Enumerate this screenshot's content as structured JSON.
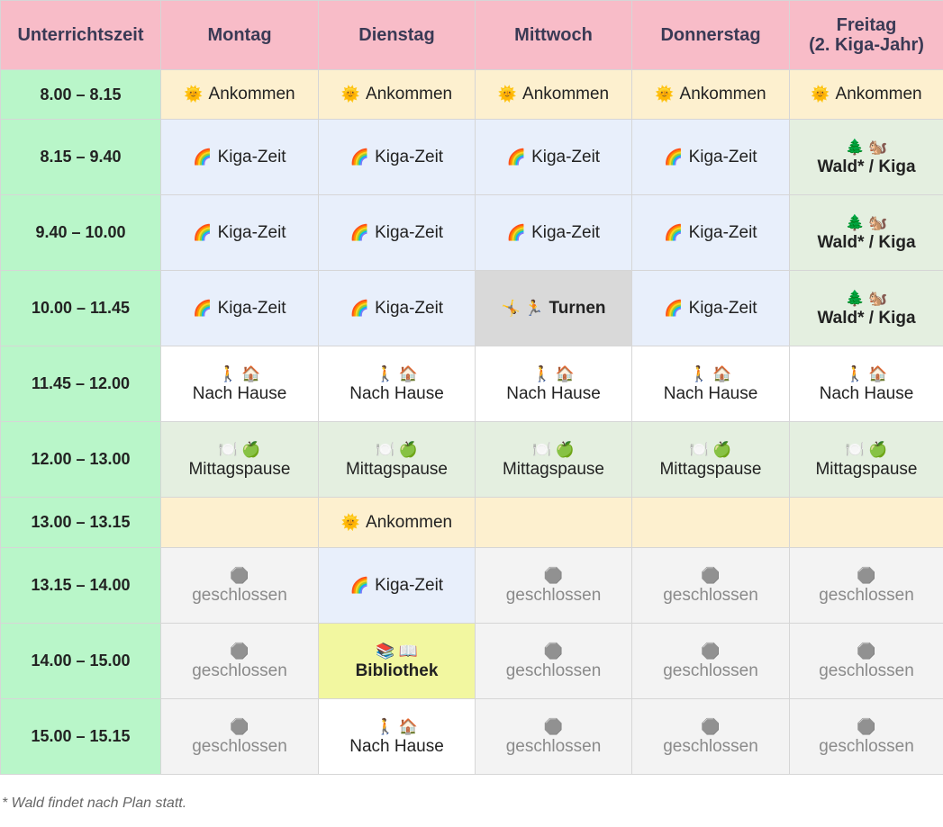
{
  "header": {
    "columns": [
      "Unterrichtszeit",
      "Montag",
      "Dienstag",
      "Mittwoch",
      "Donnerstag",
      "Freitag\n(2. Kiga-Jahr)"
    ],
    "color": "#f8bcc8"
  },
  "time_color": "#b9f6c9",
  "rows": [
    {
      "time": "8.00 – 8.15",
      "cells": [
        {
          "icon": "🌞",
          "text": "Ankommen",
          "color": "#fdf0cf"
        },
        {
          "icon": "🌞",
          "text": "Ankommen",
          "color": "#fdf0cf"
        },
        {
          "icon": "🌞",
          "text": "Ankommen",
          "color": "#fdf0cf"
        },
        {
          "icon": "🌞",
          "text": "Ankommen",
          "color": "#fdf0cf"
        },
        {
          "icon": "🌞",
          "text": "Ankommen",
          "color": "#fdf0cf"
        }
      ]
    },
    {
      "time": "8.15 – 9.40",
      "cells": [
        {
          "icon": "🌈",
          "text": "Kiga-Zeit",
          "color": "#e8effb"
        },
        {
          "icon": "🌈",
          "text": "Kiga-Zeit",
          "color": "#e8effb"
        },
        {
          "icon": "🌈",
          "text": "Kiga-Zeit",
          "color": "#e8effb"
        },
        {
          "icon": "🌈",
          "text": "Kiga-Zeit",
          "color": "#e8effb"
        },
        {
          "icon": "🌲 🐿️",
          "text": "Wald* / Kiga",
          "color": "#e4efe0",
          "bold": true,
          "stacked": true
        }
      ]
    },
    {
      "time": "9.40 – 10.00",
      "cells": [
        {
          "icon": "🌈",
          "text": "Kiga-Zeit",
          "color": "#e8effb"
        },
        {
          "icon": "🌈",
          "text": "Kiga-Zeit",
          "color": "#e8effb"
        },
        {
          "icon": "🌈",
          "text": "Kiga-Zeit",
          "color": "#e8effb"
        },
        {
          "icon": "🌈",
          "text": "Kiga-Zeit",
          "color": "#e8effb"
        },
        {
          "icon": "🌲 🐿️",
          "text": "Wald* / Kiga",
          "color": "#e4efe0",
          "bold": true,
          "stacked": true
        }
      ]
    },
    {
      "time": "10.00 – 11.45",
      "cells": [
        {
          "icon": "🌈",
          "text": "Kiga-Zeit",
          "color": "#e8effb"
        },
        {
          "icon": "🌈",
          "text": "Kiga-Zeit",
          "color": "#e8effb"
        },
        {
          "icon": "🤸 🏃",
          "text": "Turnen",
          "color": "#d9d9d9",
          "bold": true
        },
        {
          "icon": "🌈",
          "text": "Kiga-Zeit",
          "color": "#e8effb"
        },
        {
          "icon": "🌲 🐿️",
          "text": "Wald* / Kiga",
          "color": "#e4efe0",
          "bold": true,
          "stacked": true
        }
      ]
    },
    {
      "time": "11.45 – 12.00",
      "cells": [
        {
          "icon": "🚶 🏠",
          "text": "Nach Hause",
          "color": "#ffffff",
          "stacked": true
        },
        {
          "icon": "🚶 🏠",
          "text": "Nach Hause",
          "color": "#ffffff",
          "stacked": true
        },
        {
          "icon": "🚶 🏠",
          "text": "Nach Hause",
          "color": "#ffffff",
          "stacked": true
        },
        {
          "icon": "🚶 🏠",
          "text": "Nach Hause",
          "color": "#ffffff",
          "stacked": true
        },
        {
          "icon": "🚶 🏠",
          "text": "Nach Hause",
          "color": "#ffffff",
          "stacked": true
        }
      ]
    },
    {
      "time": "12.00 – 13.00",
      "cells": [
        {
          "icon": "🍽️ 🍏",
          "text": "Mittagspause",
          "color": "#e4efe0",
          "stacked": true
        },
        {
          "icon": "🍽️ 🍏",
          "text": "Mittagspause",
          "color": "#e4efe0",
          "stacked": true
        },
        {
          "icon": "🍽️ 🍏",
          "text": "Mittagspause",
          "color": "#e4efe0",
          "stacked": true
        },
        {
          "icon": "🍽️ 🍏",
          "text": "Mittagspause",
          "color": "#e4efe0",
          "stacked": true
        },
        {
          "icon": "🍽️ 🍏",
          "text": "Mittagspause",
          "color": "#e4efe0",
          "stacked": true
        }
      ]
    },
    {
      "time": "13.00 – 13.15",
      "cells": [
        {
          "color": "#fdf0cf"
        },
        {
          "icon": "🌞",
          "text": "Ankommen",
          "color": "#fdf0cf"
        },
        {
          "color": "#fdf0cf"
        },
        {
          "color": "#fdf0cf"
        },
        {
          "color": "#fdf0cf"
        }
      ]
    },
    {
      "time": "13.15 – 14.00",
      "cells": [
        {
          "icon": "🛑",
          "text": "geschlossen",
          "color": "#f3f3f3",
          "text_color": "#8a8a8a",
          "stacked": true
        },
        {
          "icon": "🌈",
          "text": "Kiga-Zeit",
          "color": "#e8effb"
        },
        {
          "icon": "🛑",
          "text": "geschlossen",
          "color": "#f3f3f3",
          "text_color": "#8a8a8a",
          "stacked": true
        },
        {
          "icon": "🛑",
          "text": "geschlossen",
          "color": "#f3f3f3",
          "text_color": "#8a8a8a",
          "stacked": true
        },
        {
          "icon": "🛑",
          "text": "geschlossen",
          "color": "#f3f3f3",
          "text_color": "#8a8a8a",
          "stacked": true
        }
      ]
    },
    {
      "time": "14.00 – 15.00",
      "cells": [
        {
          "icon": "🛑",
          "text": "geschlossen",
          "color": "#f3f3f3",
          "text_color": "#8a8a8a",
          "stacked": true
        },
        {
          "icon": "📚 📖",
          "text": "Bibliothek",
          "color": "#f2f7a0",
          "bold": true,
          "stacked": true
        },
        {
          "icon": "🛑",
          "text": "geschlossen",
          "color": "#f3f3f3",
          "text_color": "#8a8a8a",
          "stacked": true
        },
        {
          "icon": "🛑",
          "text": "geschlossen",
          "color": "#f3f3f3",
          "text_color": "#8a8a8a",
          "stacked": true
        },
        {
          "icon": "🛑",
          "text": "geschlossen",
          "color": "#f3f3f3",
          "text_color": "#8a8a8a",
          "stacked": true
        }
      ]
    },
    {
      "time": "15.00 – 15.15",
      "cells": [
        {
          "icon": "🛑",
          "text": "geschlossen",
          "color": "#f3f3f3",
          "text_color": "#8a8a8a",
          "stacked": true
        },
        {
          "icon": "🚶 🏠",
          "text": "Nach Hause",
          "color": "#ffffff",
          "stacked": true
        },
        {
          "icon": "🛑",
          "text": "geschlossen",
          "color": "#f3f3f3",
          "text_color": "#8a8a8a",
          "stacked": true
        },
        {
          "icon": "🛑",
          "text": "geschlossen",
          "color": "#f3f3f3",
          "text_color": "#8a8a8a",
          "stacked": true
        },
        {
          "icon": "🛑",
          "text": "geschlossen",
          "color": "#f3f3f3",
          "text_color": "#8a8a8a",
          "stacked": true
        }
      ]
    }
  ],
  "footnote": "* Wald findet nach Plan statt."
}
